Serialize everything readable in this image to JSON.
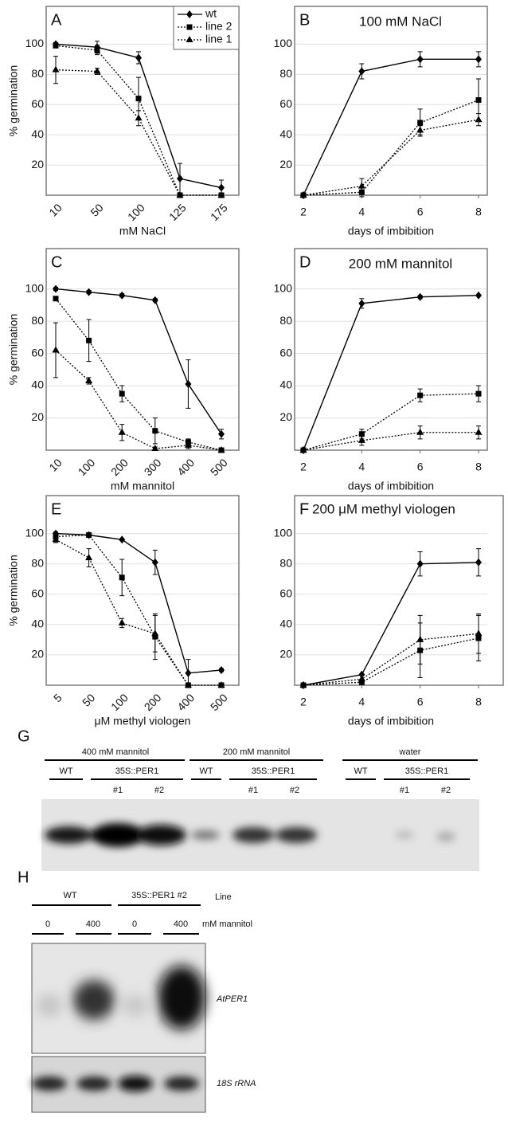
{
  "chart_data": [
    {
      "type": "line",
      "panel": "A",
      "xlabel": "mM NaCl",
      "ylabel": "% germination",
      "categories": [
        "10",
        "50",
        "100",
        "125",
        "175"
      ],
      "ylim": [
        0,
        125
      ],
      "yticks": [
        20,
        40,
        60,
        80,
        100
      ],
      "grid": true,
      "legend": "upper right",
      "series": [
        {
          "name": "wt",
          "color": "#000000",
          "marker": "diamond",
          "dash": "solid",
          "values": [
            100,
            98,
            91,
            11,
            5
          ],
          "errors": [
            1,
            4,
            4,
            10,
            5
          ]
        },
        {
          "name": "line 2",
          "color": "#000000",
          "marker": "square",
          "dash": "dotted",
          "values": [
            99,
            96,
            64,
            0,
            0
          ],
          "errors": [
            1,
            3,
            14,
            0,
            0
          ]
        },
        {
          "name": "line 1",
          "color": "#000000",
          "marker": "triangle",
          "dash": "dotted",
          "values": [
            83,
            82,
            51,
            0,
            0
          ],
          "errors": [
            9,
            2,
            5,
            0,
            0
          ]
        }
      ]
    },
    {
      "type": "line",
      "panel": "B",
      "title": "100 mM NaCl",
      "xlabel": "days of imbibition",
      "x": [
        2,
        4,
        6,
        8
      ],
      "xlim": [
        1.7,
        8.3
      ],
      "xticks": [
        2,
        4,
        6,
        8
      ],
      "ylim": [
        0,
        125
      ],
      "yticks": [
        20,
        40,
        60,
        80,
        100
      ],
      "grid": true,
      "series": [
        {
          "color": "#000000",
          "marker": "diamond",
          "dash": "solid",
          "values": [
            0,
            82,
            90,
            90
          ],
          "errors": [
            0,
            5,
            5,
            5
          ]
        },
        {
          "color": "#000000",
          "marker": "square",
          "dash": "dotted",
          "values": [
            0,
            2,
            48,
            63
          ],
          "errors": [
            0,
            3,
            9,
            14
          ]
        },
        {
          "color": "#000000",
          "marker": "triangle",
          "dash": "dotted",
          "values": [
            0,
            6,
            43,
            50
          ],
          "errors": [
            0,
            5,
            3,
            4
          ]
        }
      ]
    },
    {
      "type": "line",
      "panel": "C",
      "xlabel": "mM mannitol",
      "ylabel": "% germination",
      "categories": [
        "10",
        "100",
        "200",
        "300",
        "400",
        "500"
      ],
      "ylim": [
        0,
        125
      ],
      "yticks": [
        20,
        40,
        60,
        80,
        100
      ],
      "grid": true,
      "series": [
        {
          "color": "#000000",
          "marker": "diamond",
          "dash": "solid",
          "values": [
            100,
            98,
            96,
            93,
            41,
            10
          ],
          "errors": [
            1,
            1,
            1,
            1,
            15,
            3
          ]
        },
        {
          "color": "#000000",
          "marker": "square",
          "dash": "dotted",
          "values": [
            94,
            68,
            35,
            12,
            5,
            0
          ],
          "errors": [
            1,
            13,
            5,
            8,
            2,
            0
          ]
        },
        {
          "color": "#000000",
          "marker": "triangle",
          "dash": "dotted",
          "values": [
            62,
            43,
            11,
            1,
            3,
            0
          ],
          "errors": [
            17,
            2,
            5,
            1,
            2,
            0
          ]
        }
      ]
    },
    {
      "type": "line",
      "panel": "D",
      "title": "200 mM mannitol",
      "xlabel": "days of imbibition",
      "x": [
        2,
        4,
        6,
        8
      ],
      "xlim": [
        1.7,
        8.3
      ],
      "xticks": [
        2,
        4,
        6,
        8
      ],
      "ylim": [
        0,
        125
      ],
      "yticks": [
        20,
        40,
        60,
        80,
        100
      ],
      "grid": true,
      "series": [
        {
          "color": "#000000",
          "marker": "diamond",
          "dash": "solid",
          "values": [
            0,
            91,
            95,
            96
          ],
          "errors": [
            0,
            3,
            1,
            0
          ]
        },
        {
          "color": "#000000",
          "marker": "square",
          "dash": "dotted",
          "values": [
            0,
            10,
            34,
            35
          ],
          "errors": [
            0,
            3,
            4,
            5
          ]
        },
        {
          "color": "#000000",
          "marker": "triangle",
          "dash": "dotted",
          "values": [
            0,
            6,
            11,
            11
          ],
          "errors": [
            0,
            3,
            4,
            4
          ]
        }
      ]
    },
    {
      "type": "line",
      "panel": "E",
      "xlabel": "μM methyl viologen",
      "ylabel": "% germination",
      "categories": [
        "5",
        "50",
        "100",
        "200",
        "400",
        "500"
      ],
      "ylim": [
        0,
        125
      ],
      "yticks": [
        20,
        40,
        60,
        80,
        100
      ],
      "grid": true,
      "series": [
        {
          "color": "#000000",
          "marker": "diamond",
          "dash": "solid",
          "values": [
            100,
            99,
            96,
            81,
            8,
            10
          ],
          "errors": [
            1,
            1,
            0,
            8,
            9,
            1
          ]
        },
        {
          "color": "#000000",
          "marker": "square",
          "dash": "dotted",
          "values": [
            98,
            99,
            71,
            32,
            0,
            0
          ],
          "errors": [
            1,
            1,
            12,
            15,
            0,
            0
          ]
        },
        {
          "color": "#000000",
          "marker": "triangle",
          "dash": "dotted",
          "values": [
            96,
            84,
            41,
            34,
            0,
            0
          ],
          "errors": [
            2,
            6,
            3,
            12,
            0,
            0
          ]
        }
      ]
    },
    {
      "type": "line",
      "panel": "F",
      "title": "200 μM methyl viologen",
      "xlabel": "days of imbibition",
      "x": [
        2,
        4,
        6,
        8
      ],
      "xlim": [
        1.7,
        8.3
      ],
      "xticks": [
        2,
        4,
        6,
        8
      ],
      "ylim": [
        0,
        125
      ],
      "yticks": [
        20,
        40,
        60,
        80,
        100
      ],
      "grid": true,
      "series": [
        {
          "color": "#000000",
          "marker": "diamond",
          "dash": "solid",
          "values": [
            0,
            7,
            80,
            81
          ],
          "errors": [
            0,
            0,
            8,
            9
          ]
        },
        {
          "color": "#000000",
          "marker": "square",
          "dash": "dotted",
          "values": [
            0,
            2,
            23,
            31
          ],
          "errors": [
            0,
            0,
            18,
            15
          ]
        },
        {
          "color": "#000000",
          "marker": "triangle",
          "dash": "dotted",
          "values": [
            0,
            4,
            30,
            34
          ],
          "errors": [
            0,
            0,
            16,
            13
          ]
        }
      ]
    }
  ],
  "blot_g": {
    "panel": "G",
    "groups": [
      {
        "label": "400 mM mannitol",
        "control": "WT",
        "transgenic": "35S::PER1",
        "lines": [
          "#1",
          "#2"
        ]
      },
      {
        "label": "200 mM mannitol",
        "control": "WT",
        "transgenic": "35S::PER1",
        "lines": [
          "#1",
          "#2"
        ]
      },
      {
        "label": "water",
        "control": "WT",
        "transgenic": "35S::PER1",
        "lines": [
          "#1",
          "#2"
        ]
      }
    ]
  },
  "blot_h": {
    "panel": "H",
    "genotypes": [
      "WT",
      "35S::PER1 #2"
    ],
    "genotype_header": "Line",
    "treatments": [
      "0",
      "400",
      "0",
      "400"
    ],
    "treatment_unit": "mM mannitol",
    "probes": [
      "AtPER1",
      "18S rRNA"
    ]
  }
}
